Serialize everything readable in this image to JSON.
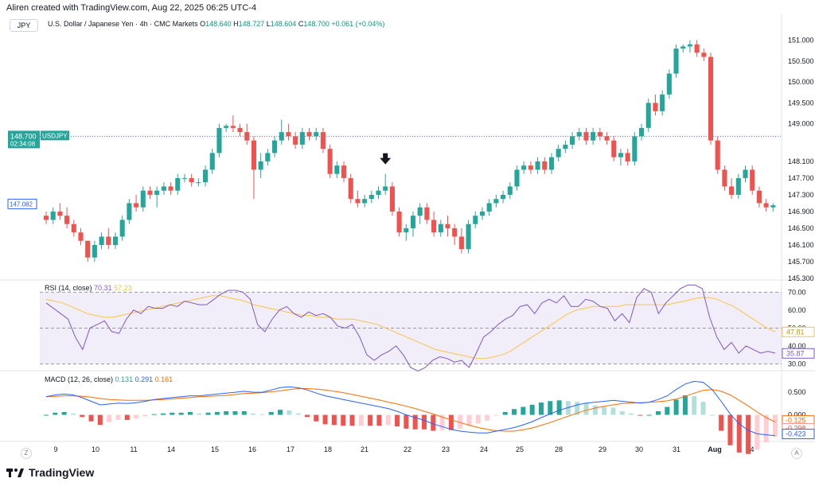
{
  "header": {
    "credit": "Aliren created with TradingView.com, Aug 22, 2025 06:25 UTC-4"
  },
  "symbol_box": "JPY",
  "legend": {
    "instrument": "U.S. Dollar / Japanese Yen · 4h · CMC Markets",
    "o_label": "O",
    "o": "148.640",
    "h_label": "H",
    "h": "148.727",
    "l_label": "L",
    "l": "148.604",
    "c_label": "C",
    "c": "148.700",
    "change": "+0.061 (+0.04%)"
  },
  "rsi_legend": {
    "name": "RSI (14, close)",
    "v1": "70.31",
    "v2": "57.23"
  },
  "macd_legend": {
    "name": "MACD (12, 26, close)",
    "v1": "0.131",
    "v2": "0.291",
    "v3": "0.161"
  },
  "price_axis": [
    "151.000",
    "150.500",
    "150.000",
    "149.500",
    "149.000",
    "148.100",
    "147.700",
    "147.300",
    "146.900",
    "146.500",
    "146.100",
    "145.700",
    "145.300"
  ],
  "price_tags": {
    "last": "148.700",
    "countdown": "02:34:08",
    "symbol": "USDJPY",
    "prev": "147.082"
  },
  "rsi_axis": [
    "70.00",
    "60.00",
    "50.00",
    "40.00",
    "30.00"
  ],
  "rsi_tags": {
    "a": "47.81",
    "b": "35.87"
  },
  "macd_axis": [
    "0.500",
    "0.000"
  ],
  "macd_tags": {
    "a": "-0.125",
    "b": "-0.298",
    "c": "-0.423"
  },
  "time_axis": [
    "9",
    "10",
    "11",
    "14",
    "15",
    "16",
    "17",
    "18",
    "21",
    "22",
    "23",
    "24",
    "25",
    "28",
    "29",
    "30",
    "31",
    "Aug",
    "4"
  ],
  "footer": {
    "brand": "TradingView"
  },
  "corner_left": "Z",
  "corner_right": "A",
  "colors": {
    "up": "#26a69a",
    "down": "#ef5350",
    "rsi": "#7e57c2",
    "rsi_ma": "#f7c548",
    "macd": "#2962ff",
    "signal": "#ff6d00"
  },
  "chart_data": {
    "type": "candlestick",
    "categories": [
      "9",
      "10",
      "11",
      "14",
      "15",
      "16",
      "17",
      "18",
      "21",
      "22",
      "23",
      "24",
      "25",
      "28",
      "29",
      "30",
      "31",
      "Aug",
      "4"
    ],
    "candles": [
      [
        146.8,
        146.9,
        146.6,
        146.7
      ],
      [
        146.7,
        147.0,
        146.6,
        146.9
      ],
      [
        146.9,
        147.1,
        146.7,
        146.8
      ],
      [
        146.8,
        147.0,
        146.5,
        146.6
      ],
      [
        146.6,
        146.7,
        146.3,
        146.4
      ],
      [
        146.4,
        146.5,
        146.1,
        146.2
      ],
      [
        146.2,
        146.2,
        145.7,
        145.8
      ],
      [
        145.8,
        146.2,
        145.7,
        146.1
      ],
      [
        146.1,
        146.4,
        146.0,
        146.3
      ],
      [
        146.3,
        146.5,
        146.0,
        146.1
      ],
      [
        146.1,
        146.4,
        146.0,
        146.3
      ],
      [
        146.3,
        146.8,
        146.2,
        146.7
      ],
      [
        146.7,
        147.2,
        146.6,
        147.1
      ],
      [
        147.1,
        147.3,
        146.9,
        147.0
      ],
      [
        147.0,
        147.5,
        146.9,
        147.4
      ],
      [
        147.4,
        147.5,
        147.2,
        147.3
      ],
      [
        147.3,
        147.5,
        147.0,
        147.4
      ],
      [
        147.4,
        147.6,
        147.3,
        147.5
      ],
      [
        147.5,
        147.6,
        147.3,
        147.4
      ],
      [
        147.4,
        147.8,
        147.3,
        147.7
      ],
      [
        147.7,
        147.8,
        147.6,
        147.7
      ],
      [
        147.7,
        147.8,
        147.5,
        147.6
      ],
      [
        147.6,
        147.7,
        147.5,
        147.6
      ],
      [
        147.6,
        148.0,
        147.5,
        147.9
      ],
      [
        147.9,
        148.4,
        147.8,
        148.3
      ],
      [
        148.3,
        149.0,
        148.2,
        148.9
      ],
      [
        148.9,
        149.0,
        148.8,
        148.95
      ],
      [
        148.95,
        149.2,
        148.8,
        148.9
      ],
      [
        148.9,
        149.0,
        148.7,
        148.8
      ],
      [
        148.8,
        149.0,
        148.5,
        148.6
      ],
      [
        148.6,
        148.7,
        147.2,
        147.9
      ],
      [
        147.9,
        148.3,
        147.7,
        148.1
      ],
      [
        148.1,
        148.4,
        148.0,
        148.3
      ],
      [
        148.3,
        148.7,
        148.2,
        148.6
      ],
      [
        148.6,
        149.1,
        148.5,
        148.8
      ],
      [
        148.8,
        149.0,
        148.6,
        148.7
      ],
      [
        148.7,
        148.8,
        148.4,
        148.5
      ],
      [
        148.5,
        148.9,
        148.4,
        148.8
      ],
      [
        148.8,
        148.9,
        148.6,
        148.7
      ],
      [
        148.7,
        148.9,
        148.6,
        148.8
      ],
      [
        148.8,
        148.9,
        148.3,
        148.4
      ],
      [
        148.4,
        148.5,
        147.7,
        147.8
      ],
      [
        147.8,
        148.1,
        147.7,
        148.0
      ],
      [
        148.0,
        148.1,
        147.6,
        147.7
      ],
      [
        147.7,
        147.8,
        147.1,
        147.2
      ],
      [
        147.2,
        147.4,
        147.0,
        147.1
      ],
      [
        147.1,
        147.3,
        147.0,
        147.2
      ],
      [
        147.2,
        147.4,
        147.1,
        147.3
      ],
      [
        147.3,
        147.5,
        147.2,
        147.4
      ],
      [
        147.4,
        147.8,
        147.3,
        147.5
      ],
      [
        147.5,
        147.6,
        146.8,
        146.9
      ],
      [
        146.9,
        147.0,
        146.3,
        146.4
      ],
      [
        146.4,
        146.6,
        146.2,
        146.5
      ],
      [
        146.5,
        146.9,
        146.3,
        146.8
      ],
      [
        146.8,
        147.1,
        146.6,
        147.0
      ],
      [
        147.0,
        147.1,
        146.6,
        146.7
      ],
      [
        146.7,
        146.9,
        146.3,
        146.4
      ],
      [
        146.4,
        146.7,
        146.3,
        146.6
      ],
      [
        146.6,
        146.8,
        146.3,
        146.5
      ],
      [
        146.5,
        146.6,
        146.1,
        146.3
      ],
      [
        146.3,
        146.5,
        145.9,
        146.0
      ],
      [
        146.0,
        146.7,
        145.9,
        146.6
      ],
      [
        146.6,
        146.9,
        146.5,
        146.8
      ],
      [
        146.8,
        147.0,
        146.7,
        146.9
      ],
      [
        146.9,
        147.2,
        146.8,
        147.1
      ],
      [
        147.1,
        147.3,
        147.0,
        147.2
      ],
      [
        147.2,
        147.4,
        147.1,
        147.3
      ],
      [
        147.3,
        147.6,
        147.2,
        147.5
      ],
      [
        147.5,
        148.0,
        147.4,
        147.9
      ],
      [
        147.9,
        148.1,
        147.8,
        148.0
      ],
      [
        148.0,
        148.1,
        147.8,
        147.9
      ],
      [
        147.9,
        148.2,
        147.8,
        148.1
      ],
      [
        148.1,
        148.2,
        147.8,
        147.9
      ],
      [
        147.9,
        148.3,
        147.8,
        148.2
      ],
      [
        148.2,
        148.5,
        148.1,
        148.4
      ],
      [
        148.4,
        148.6,
        148.3,
        148.5
      ],
      [
        148.5,
        148.8,
        148.4,
        148.7
      ],
      [
        148.7,
        148.9,
        148.6,
        148.8
      ],
      [
        148.8,
        148.9,
        148.5,
        148.6
      ],
      [
        148.6,
        148.9,
        148.5,
        148.8
      ],
      [
        148.8,
        148.9,
        148.6,
        148.7
      ],
      [
        148.7,
        148.8,
        148.5,
        148.6
      ],
      [
        148.6,
        148.7,
        148.1,
        148.2
      ],
      [
        148.2,
        148.4,
        148.0,
        148.3
      ],
      [
        148.3,
        148.4,
        148.0,
        148.1
      ],
      [
        148.1,
        148.8,
        148.0,
        148.7
      ],
      [
        148.7,
        149.0,
        148.6,
        148.9
      ],
      [
        148.9,
        149.6,
        148.8,
        149.5
      ],
      [
        149.5,
        149.7,
        149.2,
        149.3
      ],
      [
        149.3,
        149.8,
        149.2,
        149.7
      ],
      [
        149.7,
        150.3,
        149.6,
        150.2
      ],
      [
        150.2,
        150.9,
        150.1,
        150.8
      ],
      [
        150.8,
        150.9,
        150.7,
        150.85
      ],
      [
        150.85,
        151.0,
        150.7,
        150.9
      ],
      [
        150.9,
        151.0,
        150.6,
        150.7
      ],
      [
        150.7,
        150.8,
        150.5,
        150.6
      ],
      [
        150.6,
        150.7,
        148.5,
        148.6
      ],
      [
        148.6,
        148.7,
        147.8,
        147.9
      ],
      [
        147.9,
        148.0,
        147.4,
        147.5
      ],
      [
        147.5,
        147.7,
        147.2,
        147.3
      ],
      [
        147.3,
        147.8,
        147.2,
        147.7
      ],
      [
        147.7,
        148.0,
        147.6,
        147.9
      ],
      [
        147.9,
        148.0,
        147.3,
        147.4
      ],
      [
        147.4,
        147.5,
        147.0,
        147.1
      ],
      [
        147.1,
        147.2,
        146.9,
        147.0
      ],
      [
        147.0,
        147.1,
        146.9,
        147.05
      ]
    ],
    "rsi": [
      64,
      61,
      58,
      55,
      45,
      38,
      50,
      52,
      54,
      48,
      47,
      55,
      60,
      58,
      62,
      61,
      61,
      63,
      62,
      65,
      64,
      63,
      63,
      66,
      69,
      71,
      71,
      70,
      66,
      52,
      48,
      55,
      60,
      62,
      58,
      56,
      59,
      57,
      58,
      56,
      51,
      50,
      52,
      45,
      35,
      32,
      35,
      37,
      40,
      35,
      28,
      26,
      28,
      32,
      34,
      33,
      31,
      32,
      28,
      36,
      45,
      48,
      52,
      55,
      57,
      62,
      63,
      58,
      64,
      66,
      64,
      68,
      62,
      62,
      66,
      65,
      62,
      61,
      54,
      58,
      53,
      67,
      72,
      70,
      58,
      64,
      68,
      72,
      74,
      74,
      72,
      56,
      45,
      38,
      42,
      36,
      40,
      38,
      36,
      37,
      36
    ],
    "rsi_ma": [
      66,
      65,
      64,
      62,
      60,
      58,
      57,
      56,
      56,
      57,
      58,
      59,
      60,
      61,
      62,
      63,
      64,
      65,
      66,
      67,
      68,
      68,
      67,
      66,
      65,
      63,
      62,
      61,
      60,
      59,
      58,
      57,
      57,
      56,
      56,
      55,
      55,
      55,
      54,
      53,
      52,
      50,
      48,
      46,
      44,
      42,
      40,
      38,
      37,
      36,
      35,
      34,
      33,
      33,
      34,
      35,
      37,
      40,
      43,
      46,
      49,
      52,
      55,
      58,
      60,
      61,
      62,
      62,
      62,
      62,
      63,
      63,
      63,
      63,
      63,
      63,
      64,
      65,
      66,
      67,
      67,
      66,
      64,
      62,
      59,
      56,
      53,
      50,
      48
    ],
    "macd": [
      0.4,
      0.44,
      0.46,
      0.44,
      0.38,
      0.3,
      0.22,
      0.24,
      0.26,
      0.25,
      0.27,
      0.3,
      0.34,
      0.36,
      0.38,
      0.4,
      0.42,
      0.42,
      0.44,
      0.46,
      0.48,
      0.5,
      0.52,
      0.5,
      0.5,
      0.55,
      0.6,
      0.62,
      0.6,
      0.55,
      0.48,
      0.42,
      0.38,
      0.34,
      0.3,
      0.26,
      0.22,
      0.18,
      0.14,
      0.08,
      0.0,
      -0.06,
      -0.12,
      -0.2,
      -0.26,
      -0.32,
      -0.36,
      -0.38,
      -0.4,
      -0.4,
      -0.36,
      -0.32,
      -0.28,
      -0.22,
      -0.15,
      -0.06,
      0.02,
      0.1,
      0.16,
      0.22,
      0.26,
      0.28,
      0.3,
      0.32,
      0.3,
      0.28,
      0.26,
      0.28,
      0.34,
      0.42,
      0.56,
      0.68,
      0.74,
      0.72,
      0.56,
      0.3,
      0.02,
      -0.2,
      -0.34,
      -0.42,
      -0.44,
      -0.46
    ],
    "signal": [
      0.4,
      0.41,
      0.42,
      0.42,
      0.41,
      0.39,
      0.36,
      0.34,
      0.33,
      0.32,
      0.32,
      0.32,
      0.33,
      0.34,
      0.35,
      0.37,
      0.38,
      0.4,
      0.41,
      0.42,
      0.43,
      0.45,
      0.47,
      0.48,
      0.49,
      0.51,
      0.53,
      0.56,
      0.58,
      0.58,
      0.57,
      0.55,
      0.52,
      0.49,
      0.45,
      0.41,
      0.37,
      0.33,
      0.28,
      0.24,
      0.19,
      0.14,
      0.08,
      0.02,
      -0.05,
      -0.11,
      -0.17,
      -0.23,
      -0.28,
      -0.32,
      -0.35,
      -0.36,
      -0.36,
      -0.33,
      -0.29,
      -0.23,
      -0.17,
      -0.1,
      -0.03,
      0.04,
      0.1,
      0.15,
      0.19,
      0.22,
      0.25,
      0.26,
      0.27,
      0.28,
      0.29,
      0.31,
      0.35,
      0.41,
      0.48,
      0.54,
      0.56,
      0.52,
      0.44,
      0.32,
      0.2,
      0.06,
      -0.06,
      -0.16
    ],
    "hist_colors": [
      "#b2dfdb",
      "#26a69a",
      "#ef5350",
      "#ffcdd2"
    ],
    "price_range": [
      145.3,
      151.2
    ],
    "rsi_range": [
      28,
      75
    ],
    "macd_range": [
      -0.5,
      0.8
    ],
    "annotations": [
      {
        "type": "arrow-down",
        "index": 49
      }
    ]
  }
}
